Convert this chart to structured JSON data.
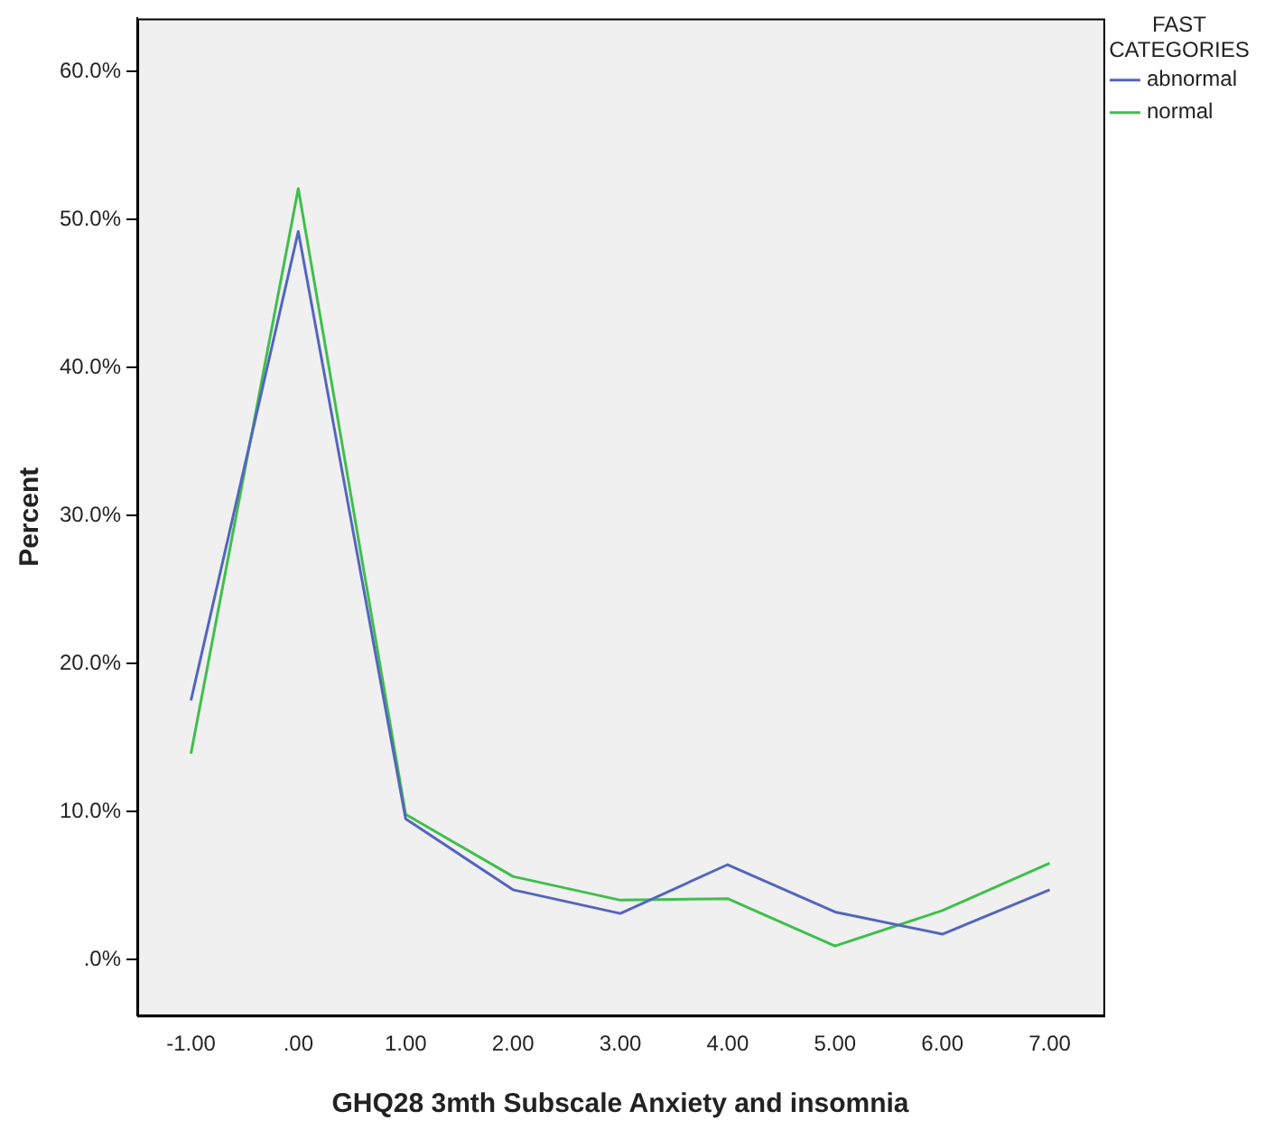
{
  "chart_data": {
    "type": "line",
    "categories": [
      "-1.00",
      ".00",
      "1.00",
      "2.00",
      "3.00",
      "4.00",
      "5.00",
      "6.00",
      "7.00"
    ],
    "series": [
      {
        "name": "abnormal",
        "color": "#5465bd",
        "values": [
          17.5,
          49.2,
          9.5,
          4.7,
          3.1,
          6.4,
          3.2,
          1.7,
          4.7
        ]
      },
      {
        "name": "normal",
        "color": "#3ebf4c",
        "values": [
          13.9,
          52.1,
          9.8,
          5.6,
          4.0,
          4.1,
          0.9,
          3.3,
          6.5
        ]
      }
    ],
    "xlabel": "GHQ28 3mth Subscale Anxiety and insomnia",
    "ylabel": "Percent",
    "legend_title": "FAST CATEGORIES",
    "legend": "right",
    "ylim": [
      -3.8,
      63.6
    ],
    "yticks": [
      {
        "value": 0,
        "label": ".0%"
      },
      {
        "value": 10,
        "label": "10.0%"
      },
      {
        "value": 20,
        "label": "20.0%"
      },
      {
        "value": 30,
        "label": "30.0%"
      },
      {
        "value": 40,
        "label": "40.0%"
      },
      {
        "value": 50,
        "label": "50.0%"
      },
      {
        "value": 60,
        "label": "60.0%"
      }
    ],
    "grid": false,
    "marker": "none",
    "line_style": "solid"
  }
}
